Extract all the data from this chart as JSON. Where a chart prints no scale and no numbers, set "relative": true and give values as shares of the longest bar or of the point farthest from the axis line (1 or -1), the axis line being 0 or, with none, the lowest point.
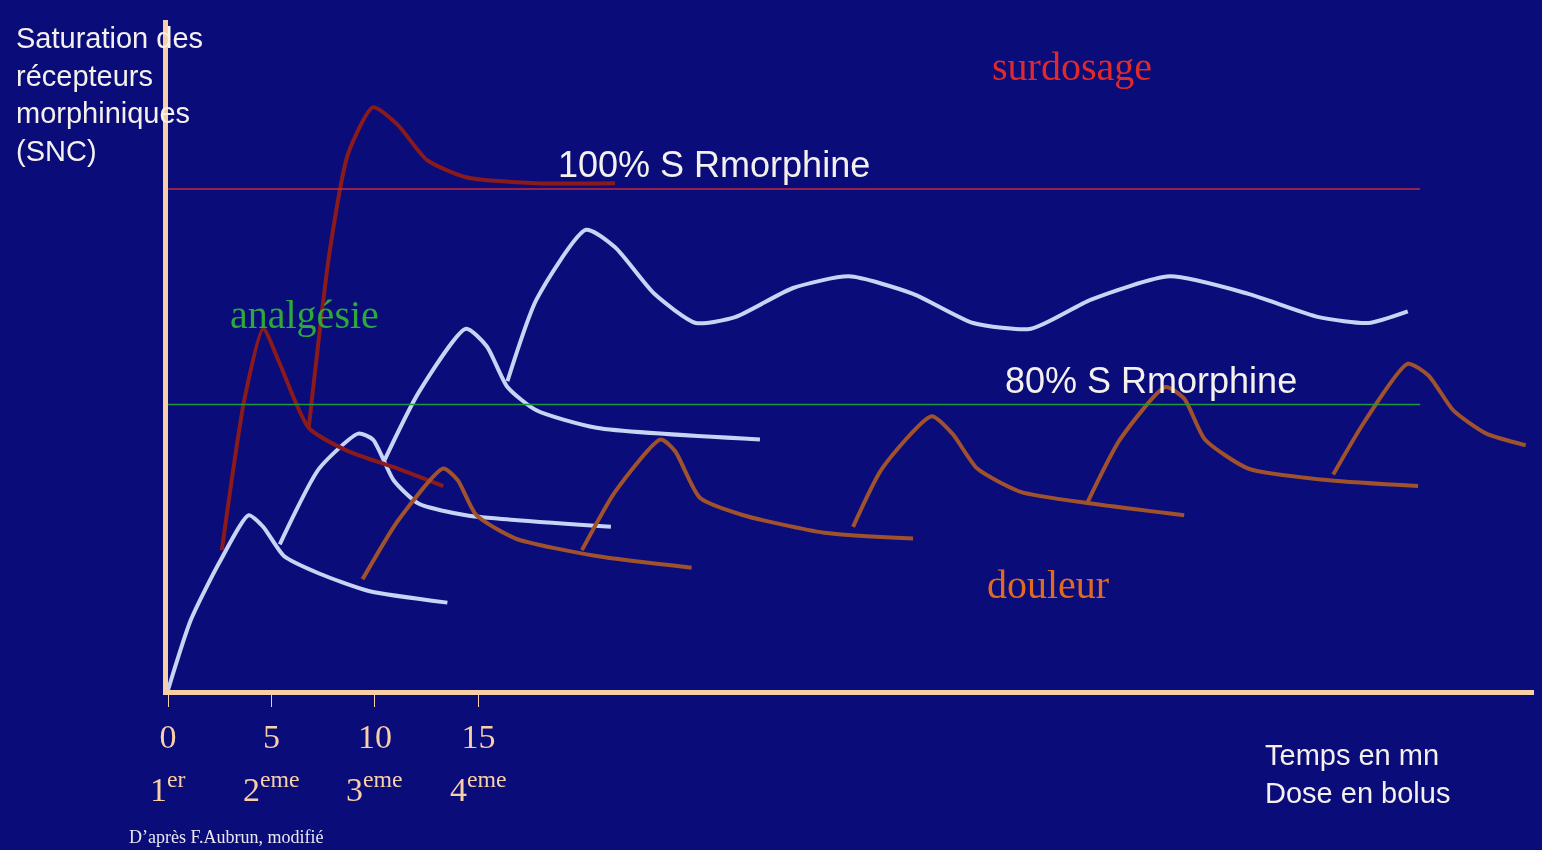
{
  "chart_data": {
    "type": "line",
    "relative": true,
    "grid": false,
    "ylabel": "Saturation des\nrécepteurs\nmorphiniques\n(SNC)",
    "xlabel": "Temps en mn\nDose en bolus",
    "xlim": [
      0,
      66
    ],
    "xticks": [
      0,
      5,
      10,
      15
    ],
    "annotations": [
      "surdosage",
      "analgésie",
      "douleur",
      "D’après F.Aubrun, modifié",
      "1$^{er}$",
      "2$^{eme}$",
      "3$^{eme}$",
      "4$^{eme}$"
    ],
    "ref_lines": [
      {
        "axis": "y",
        "value": 0.86,
        "label": "100% S Rmorphine",
        "color": "#c0283c"
      },
      {
        "axis": "y",
        "value": 0.49,
        "label": "80% S Rmorphine",
        "color": "#1a9a3a"
      }
    ],
    "series": [
      {
        "color": "#c8d4f4",
        "x": [
          0,
          1.1,
          2.5,
          3.9,
          4.6,
          5.6,
          7.3,
          9.7,
          13.5
        ],
        "values": [
          0,
          0.12,
          0.22,
          0.3,
          0.28,
          0.23,
          0.2,
          0.17,
          0.15
        ]
      },
      {
        "color": "#c8d4f4",
        "x": [
          5.4,
          7.3,
          9.2,
          9.9,
          10.9,
          12.1,
          14.4,
          21.4
        ],
        "values": [
          0.25,
          0.38,
          0.44,
          0.43,
          0.36,
          0.32,
          0.3,
          0.28
        ]
      },
      {
        "color": "#c8d4f4",
        "x": [
          10.4,
          12.1,
          14.4,
          15.4,
          16.4,
          17.8,
          20.7,
          28.6
        ],
        "values": [
          0.39,
          0.51,
          0.62,
          0.59,
          0.52,
          0.48,
          0.45,
          0.43
        ]
      },
      {
        "color": "#c8d4f4",
        "x": [
          16.4,
          17.8,
          20.2,
          21.6,
          23.5,
          25.5,
          27.4,
          30.2,
          32.9,
          36.0,
          38.9,
          41.7,
          44.6,
          48.4,
          52.2,
          55.6,
          58.0,
          59.9
        ],
        "values": [
          0.53,
          0.67,
          0.79,
          0.76,
          0.68,
          0.63,
          0.64,
          0.69,
          0.71,
          0.68,
          0.63,
          0.62,
          0.67,
          0.71,
          0.68,
          0.64,
          0.63,
          0.65
        ]
      },
      {
        "color": "#8b1a1a",
        "x": [
          2.6,
          3.7,
          4.6,
          5.4,
          6.8,
          8.7,
          11.1,
          13.3
        ],
        "values": [
          0.24,
          0.5,
          0.62,
          0.56,
          0.45,
          0.41,
          0.38,
          0.35
        ]
      },
      {
        "color": "#8b1a1a",
        "x": [
          6.8,
          7.8,
          8.7,
          9.9,
          11.1,
          12.5,
          14.4,
          17.8,
          21.6
        ],
        "values": [
          0.45,
          0.75,
          0.92,
          1.0,
          0.97,
          0.91,
          0.88,
          0.87,
          0.87
        ]
      },
      {
        "color": "#a0522d",
        "x": [
          9.4,
          11.1,
          13.3,
          14.0,
          14.9,
          16.8,
          20.7,
          25.3
        ],
        "values": [
          0.19,
          0.29,
          0.38,
          0.36,
          0.3,
          0.26,
          0.23,
          0.21
        ]
      },
      {
        "color": "#a0522d",
        "x": [
          20.0,
          21.6,
          23.8,
          24.5,
          25.7,
          27.8,
          31.7,
          36.0
        ],
        "values": [
          0.24,
          0.34,
          0.43,
          0.41,
          0.33,
          0.3,
          0.27,
          0.26
        ]
      },
      {
        "color": "#a0522d",
        "x": [
          33.1,
          34.5,
          36.9,
          37.9,
          39.1,
          41.2,
          44.6,
          49.1
        ],
        "values": [
          0.28,
          0.38,
          0.47,
          0.44,
          0.38,
          0.34,
          0.32,
          0.3
        ]
      },
      {
        "color": "#a0522d",
        "x": [
          44.4,
          46.0,
          48.2,
          49.1,
          50.1,
          52.2,
          56.1,
          60.4
        ],
        "values": [
          0.32,
          0.43,
          0.52,
          0.5,
          0.43,
          0.38,
          0.36,
          0.35
        ]
      },
      {
        "color": "#a0522d",
        "x": [
          56.3,
          57.8,
          59.9,
          60.9,
          62.1,
          63.7,
          65.6
        ],
        "values": [
          0.37,
          0.46,
          0.56,
          0.54,
          0.48,
          0.44,
          0.42
        ]
      }
    ]
  }
}
